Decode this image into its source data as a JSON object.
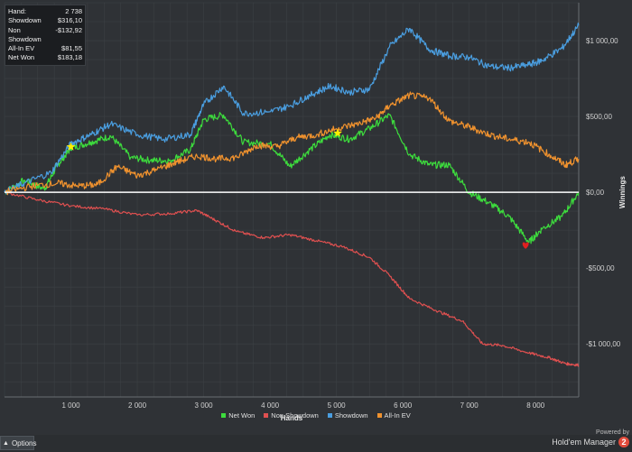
{
  "stats": [
    {
      "label": "Hand:",
      "value": "2 738"
    },
    {
      "label": "Showdown",
      "value": "$316,10"
    },
    {
      "label": "Non Showdown",
      "value": "-$132,92"
    },
    {
      "label": "All-In EV",
      "value": "$81,55"
    },
    {
      "label": "Net Won",
      "value": "$183,18"
    }
  ],
  "footer": {
    "options_label": "Options",
    "powered_by": "Powered by",
    "brand": "Hold'em Manager",
    "brand_badge": "2"
  },
  "colors": {
    "background": "#2f3236",
    "grid": "#3c4044",
    "net_won": "#3ddc3d",
    "non_showdown": "#e05050",
    "showdown": "#4a9ee0",
    "allin_ev": "#f0922e",
    "zero_line": "#ffffff"
  },
  "chart_data": {
    "type": "line",
    "xlabel": "Hands",
    "ylabel": "Winnings",
    "xlim": [
      0,
      8650
    ],
    "ylim": [
      -1350,
      1250
    ],
    "x_ticks": [
      1000,
      2000,
      3000,
      4000,
      5000,
      6000,
      7000,
      8000
    ],
    "x_tick_labels": [
      "1 000",
      "2 000",
      "3 000",
      "4 000",
      "5 000",
      "6 000",
      "7 000",
      "8 000"
    ],
    "y_ticks": [
      1000,
      500,
      0,
      -500,
      -1000
    ],
    "y_tick_labels": [
      "$1 000,00",
      "$500,00",
      "$0,00",
      "-$500,00",
      "-$1 000,00"
    ],
    "grid": true,
    "legend_position": "bottom-center",
    "series": [
      {
        "name": "Net Won",
        "color": "#3ddc3d",
        "points": [
          [
            0,
            0
          ],
          [
            300,
            80
          ],
          [
            600,
            20
          ],
          [
            800,
            180
          ],
          [
            1000,
            290
          ],
          [
            1300,
            330
          ],
          [
            1600,
            370
          ],
          [
            1900,
            230
          ],
          [
            2200,
            210
          ],
          [
            2500,
            210
          ],
          [
            2800,
            280
          ],
          [
            3000,
            480
          ],
          [
            3300,
            510
          ],
          [
            3600,
            330
          ],
          [
            4000,
            320
          ],
          [
            4300,
            170
          ],
          [
            4600,
            280
          ],
          [
            4900,
            380
          ],
          [
            5200,
            350
          ],
          [
            5500,
            420
          ],
          [
            5800,
            510
          ],
          [
            6100,
            250
          ],
          [
            6400,
            180
          ],
          [
            6700,
            180
          ],
          [
            7000,
            0
          ],
          [
            7300,
            -70
          ],
          [
            7600,
            -160
          ],
          [
            7900,
            -330
          ],
          [
            8100,
            -240
          ],
          [
            8400,
            -160
          ],
          [
            8650,
            0
          ]
        ]
      },
      {
        "name": "Non Showdown",
        "color": "#e05050",
        "points": [
          [
            0,
            0
          ],
          [
            500,
            -50
          ],
          [
            1000,
            -90
          ],
          [
            1500,
            -110
          ],
          [
            2000,
            -150
          ],
          [
            2500,
            -140
          ],
          [
            2900,
            -120
          ],
          [
            3200,
            -190
          ],
          [
            3500,
            -260
          ],
          [
            3900,
            -300
          ],
          [
            4300,
            -280
          ],
          [
            4700,
            -320
          ],
          [
            5100,
            -360
          ],
          [
            5500,
            -430
          ],
          [
            5800,
            -550
          ],
          [
            6100,
            -700
          ],
          [
            6500,
            -780
          ],
          [
            6900,
            -850
          ],
          [
            7200,
            -1000
          ],
          [
            7500,
            -1010
          ],
          [
            7900,
            -1060
          ],
          [
            8200,
            -1090
          ],
          [
            8450,
            -1130
          ],
          [
            8650,
            -1140
          ]
        ]
      },
      {
        "name": "Showdown",
        "color": "#4a9ee0",
        "points": [
          [
            0,
            0
          ],
          [
            300,
            60
          ],
          [
            700,
            130
          ],
          [
            1000,
            320
          ],
          [
            1300,
            380
          ],
          [
            1600,
            450
          ],
          [
            2000,
            380
          ],
          [
            2400,
            350
          ],
          [
            2800,
            380
          ],
          [
            3000,
            580
          ],
          [
            3300,
            700
          ],
          [
            3600,
            520
          ],
          [
            4000,
            530
          ],
          [
            4300,
            570
          ],
          [
            4600,
            640
          ],
          [
            4900,
            700
          ],
          [
            5200,
            660
          ],
          [
            5500,
            680
          ],
          [
            5800,
            960
          ],
          [
            6100,
            1080
          ],
          [
            6400,
            940
          ],
          [
            6700,
            900
          ],
          [
            7000,
            890
          ],
          [
            7300,
            830
          ],
          [
            7600,
            820
          ],
          [
            7900,
            840
          ],
          [
            8100,
            870
          ],
          [
            8400,
            950
          ],
          [
            8650,
            1100
          ]
        ]
      },
      {
        "name": "All-In EV",
        "color": "#f0922e",
        "points": [
          [
            0,
            0
          ],
          [
            400,
            40
          ],
          [
            800,
            60
          ],
          [
            1100,
            40
          ],
          [
            1400,
            50
          ],
          [
            1700,
            170
          ],
          [
            2000,
            110
          ],
          [
            2300,
            150
          ],
          [
            2600,
            200
          ],
          [
            2900,
            240
          ],
          [
            3200,
            220
          ],
          [
            3500,
            230
          ],
          [
            3800,
            310
          ],
          [
            4100,
            300
          ],
          [
            4400,
            360
          ],
          [
            4700,
            380
          ],
          [
            5000,
            420
          ],
          [
            5300,
            450
          ],
          [
            5600,
            490
          ],
          [
            5800,
            570
          ],
          [
            6100,
            640
          ],
          [
            6400,
            620
          ],
          [
            6700,
            470
          ],
          [
            7000,
            430
          ],
          [
            7300,
            380
          ],
          [
            7600,
            350
          ],
          [
            7900,
            330
          ],
          [
            8200,
            250
          ],
          [
            8450,
            180
          ],
          [
            8650,
            220
          ]
        ]
      }
    ],
    "markers": [
      {
        "x": 1000,
        "y": 300,
        "shape": "star",
        "color": "#ffee00"
      },
      {
        "x": 5020,
        "y": 390,
        "shape": "star",
        "color": "#ffee00"
      },
      {
        "x": 7850,
        "y": -350,
        "shape": "heart",
        "color": "#e02020"
      }
    ]
  }
}
